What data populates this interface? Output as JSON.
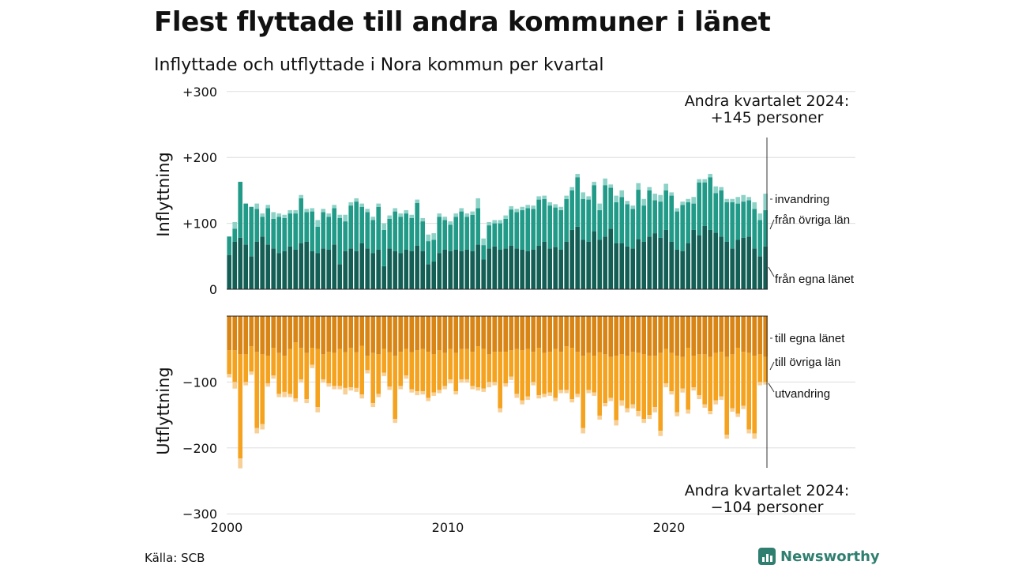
{
  "header": {
    "title": "Flest flyttade till andra kommuner i länet",
    "subtitle": "Inflyttade och utflyttade i Nora kommun per kvartal"
  },
  "footer": {
    "source": "Källa: SCB",
    "brand": "Newsworthy"
  },
  "colors": {
    "in_egna": "#135e55",
    "in_ovriga": "#229a88",
    "in_invandring": "#8dd2c7",
    "ut_egna": "#d88515",
    "ut_ovriga": "#f5a21f",
    "ut_utvandring": "#f8d096",
    "grid": "#dddddd",
    "brand": "#2f7f71"
  },
  "chart_data": {
    "type": "bar",
    "stacked": true,
    "start": "2000 Q1",
    "end": "2024 Q2",
    "ylim": [
      -300,
      300
    ],
    "y_ticks": [
      {
        "value": 300,
        "label": "+300"
      },
      {
        "value": 200,
        "label": "+200"
      },
      {
        "value": 100,
        "label": "+100"
      },
      {
        "value": 0,
        "label": "0"
      },
      {
        "value": -100,
        "label": "−100"
      },
      {
        "value": -200,
        "label": "−200"
      },
      {
        "value": -300,
        "label": "−300"
      }
    ],
    "x_ticks": [
      "2000",
      "2010",
      "2020"
    ],
    "inflyttning_label": "Inflyttning",
    "utflyttning_label": "Utflyttning",
    "annotation_in": {
      "line1": "Andra kvartalet 2024:",
      "line2": "+145 personer"
    },
    "annotation_ut": {
      "line1": "Andra kvartalet 2024:",
      "line2": "−104 personer"
    },
    "series": [
      {
        "name": "från egna länet",
        "group": "in",
        "values": [
          52,
          72,
          78,
          68,
          50,
          72,
          80,
          68,
          62,
          55,
          58,
          65,
          60,
          70,
          72,
          58,
          55,
          62,
          60,
          68,
          38,
          58,
          62,
          58,
          70,
          62,
          55,
          60,
          35,
          62,
          58,
          55,
          60,
          58,
          66,
          58,
          38,
          42,
          55,
          60,
          58,
          60,
          58,
          60,
          58,
          68,
          45,
          62,
          65,
          60,
          62,
          66,
          62,
          60,
          58,
          60,
          66,
          72,
          62,
          64,
          60,
          72,
          90,
          95,
          75,
          72,
          88,
          75,
          80,
          92,
          70,
          70,
          65,
          62,
          76,
          72,
          80,
          85,
          78,
          90,
          72,
          60,
          58,
          70,
          90,
          82,
          96,
          90,
          86,
          80,
          72,
          62,
          75,
          78,
          80,
          62,
          50,
          65
        ]
      },
      {
        "name": "från övriga län",
        "group": "in",
        "values": [
          28,
          20,
          85,
          62,
          75,
          50,
          30,
          55,
          45,
          55,
          50,
          50,
          55,
          68,
          45,
          60,
          40,
          55,
          50,
          55,
          70,
          45,
          65,
          75,
          55,
          55,
          50,
          65,
          55,
          45,
          60,
          55,
          55,
          50,
          65,
          45,
          35,
          33,
          55,
          45,
          40,
          50,
          60,
          50,
          55,
          55,
          22,
          35,
          35,
          40,
          45,
          55,
          55,
          60,
          65,
          62,
          70,
          65,
          65,
          60,
          60,
          65,
          60,
          75,
          62,
          64,
          70,
          45,
          78,
          62,
          62,
          70,
          64,
          60,
          75,
          55,
          70,
          50,
          55,
          60,
          70,
          58,
          70,
          62,
          40,
          80,
          66,
          80,
          60,
          70,
          60,
          70,
          55,
          55,
          55,
          60,
          55,
          55
        ]
      },
      {
        "name": "invandring",
        "group": "in",
        "values": [
          0,
          10,
          0,
          0,
          0,
          8,
          5,
          5,
          10,
          5,
          5,
          5,
          5,
          5,
          5,
          5,
          10,
          5,
          5,
          5,
          5,
          10,
          5,
          5,
          5,
          5,
          5,
          5,
          10,
          5,
          5,
          5,
          5,
          5,
          5,
          5,
          10,
          10,
          5,
          5,
          5,
          5,
          5,
          5,
          5,
          15,
          10,
          5,
          5,
          5,
          5,
          5,
          5,
          5,
          5,
          5,
          5,
          5,
          5,
          5,
          5,
          5,
          5,
          5,
          10,
          5,
          5,
          10,
          10,
          5,
          10,
          10,
          5,
          5,
          10,
          10,
          5,
          10,
          10,
          10,
          5,
          5,
          5,
          5,
          10,
          5,
          5,
          5,
          10,
          5,
          5,
          5,
          10,
          10,
          5,
          10,
          10,
          25
        ]
      },
      {
        "name": "till egna länet",
        "group": "ut",
        "values": [
          52,
          52,
          58,
          58,
          46,
          54,
          58,
          60,
          48,
          56,
          60,
          50,
          40,
          48,
          56,
          48,
          50,
          58,
          54,
          56,
          50,
          55,
          48,
          55,
          45,
          60,
          56,
          58,
          50,
          55,
          60,
          54,
          50,
          55,
          52,
          50,
          54,
          58,
          52,
          56,
          50,
          56,
          50,
          50,
          54,
          46,
          50,
          58,
          54,
          54,
          54,
          52,
          50,
          52,
          50,
          54,
          48,
          56,
          54,
          50,
          54,
          46,
          48,
          54,
          60,
          56,
          60,
          55,
          58,
          62,
          60,
          58,
          60,
          54,
          56,
          58,
          60,
          60,
          56,
          50,
          56,
          60,
          62,
          48,
          60,
          58,
          58,
          62,
          56,
          54,
          62,
          58,
          48,
          54,
          56,
          60,
          58,
          62
        ]
      },
      {
        "name": "till övriga län",
        "group": "ut",
        "values": [
          36,
          48,
          158,
          42,
          38,
          116,
          106,
          42,
          42,
          62,
          55,
          68,
          85,
          48,
          70,
          26,
          88,
          38,
          48,
          50,
          56,
          54,
          60,
          54,
          74,
          22,
          76,
          60,
          36,
          52,
          96,
          52,
          40,
          56,
          62,
          64,
          70,
          58,
          60,
          50,
          46,
          58,
          46,
          46,
          52,
          62,
          60,
          42,
          46,
          86,
          48,
          40,
          68,
          76,
          72,
          46,
          72,
          62,
          62,
          74,
          58,
          66,
          78,
          64,
          110,
          56,
          56,
          96,
          74,
          62,
          98,
          70,
          80,
          80,
          88,
          98,
          90,
          78,
          118,
          52,
          58,
          86,
          48,
          94,
          48,
          62,
          76,
          82,
          72,
          68,
          118,
          82,
          100,
          82,
          116,
          118,
          42,
          38
        ]
      },
      {
        "name": "utvandring",
        "group": "ut",
        "values": [
          5,
          10,
          15,
          5,
          5,
          8,
          8,
          5,
          5,
          5,
          8,
          5,
          5,
          5,
          6,
          5,
          8,
          5,
          5,
          5,
          5,
          10,
          5,
          6,
          6,
          5,
          6,
          5,
          5,
          5,
          6,
          5,
          5,
          5,
          6,
          5,
          5,
          5,
          5,
          5,
          6,
          5,
          5,
          5,
          5,
          5,
          5,
          8,
          5,
          6,
          5,
          5,
          6,
          6,
          5,
          5,
          5,
          5,
          5,
          5,
          5,
          5,
          5,
          5,
          8,
          5,
          5,
          6,
          5,
          5,
          8,
          8,
          6,
          6,
          8,
          6,
          6,
          8,
          8,
          6,
          5,
          6,
          6,
          6,
          5,
          6,
          5,
          5,
          6,
          5,
          6,
          5,
          5,
          5,
          6,
          8,
          5,
          4
        ]
      }
    ]
  }
}
